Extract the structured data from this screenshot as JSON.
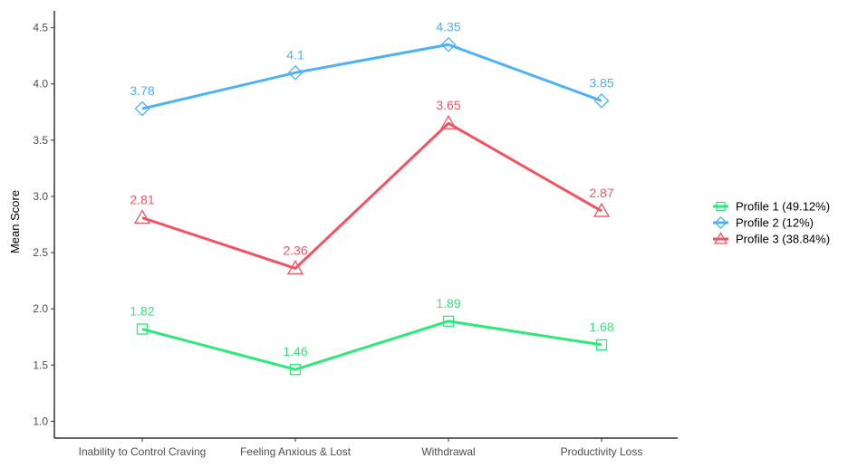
{
  "chart_data": {
    "type": "line",
    "title": "",
    "xlabel": "",
    "ylabel": "Mean Score",
    "categories": [
      "Inability to Control Craving",
      "Feeling Anxious & Lost",
      "Withdrawal",
      "Productivity Loss"
    ],
    "ylim": [
      0.85,
      4.65
    ],
    "yticks": [
      "1.0",
      "1.5",
      "2.0",
      "2.5",
      "3.0",
      "3.5",
      "4.0",
      "4.5"
    ],
    "grid": false,
    "legend_position": "right",
    "series": [
      {
        "name": "Profile 1 (49.12%)",
        "color": "#2ee87a",
        "marker": "square",
        "values": [
          1.82,
          1.46,
          1.89,
          1.68
        ],
        "labels": [
          "1.82",
          "1.46",
          "1.89",
          "1.68"
        ]
      },
      {
        "name": "Profile 2 (12%)",
        "color": "#4db1f5",
        "marker": "diamond",
        "values": [
          3.78,
          4.1,
          4.35,
          3.85
        ],
        "labels": [
          "3.78",
          "4.1",
          "4.35",
          "3.85"
        ]
      },
      {
        "name": "Profile 3 (38.84%)",
        "color": "#f2545f",
        "marker": "triangle",
        "values": [
          2.81,
          2.36,
          3.65,
          2.87
        ],
        "labels": [
          "2.81",
          "2.36",
          "3.65",
          "2.87"
        ]
      }
    ]
  }
}
